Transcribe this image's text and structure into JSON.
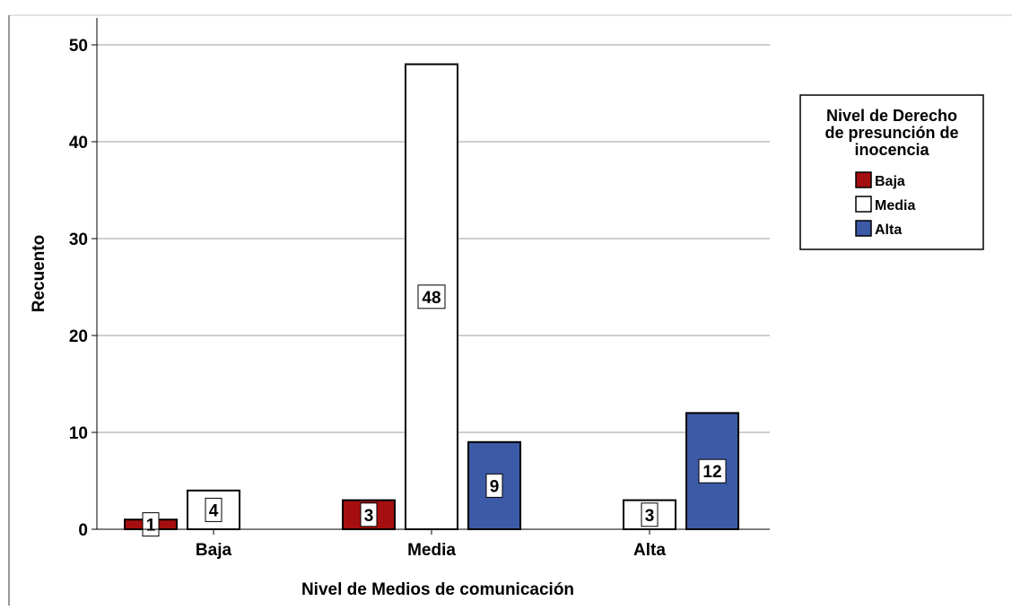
{
  "chart_data": {
    "type": "bar",
    "xlabel": "Nivel de Medios de comunicación",
    "ylabel": "Recuento",
    "categories": [
      "Baja",
      "Media",
      "Alta"
    ],
    "ylim": [
      0,
      50
    ],
    "yticks": [
      0,
      10,
      20,
      30,
      40,
      50
    ],
    "grid": true,
    "legend_position": "right",
    "legend_title": [
      "Nivel de Derecho",
      "de presunción de",
      "inocencia"
    ],
    "series": [
      {
        "name": "Baja",
        "color": "#a50f0f",
        "values": [
          1,
          3,
          null
        ]
      },
      {
        "name": "Media",
        "color": "#ffffff",
        "values": [
          4,
          48,
          3
        ]
      },
      {
        "name": "Alta",
        "color": "#3c5aa6",
        "values": [
          null,
          9,
          12
        ]
      }
    ]
  }
}
